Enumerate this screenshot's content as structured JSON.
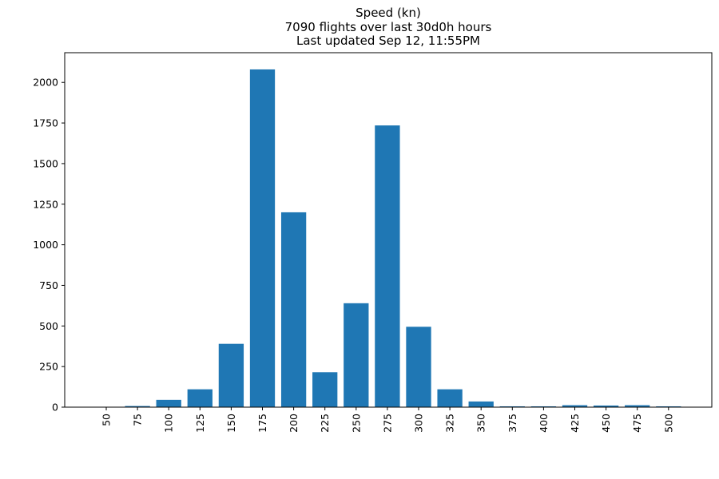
{
  "chart_data": {
    "type": "bar",
    "title": "Speed (kn)",
    "subtitle_lines": [
      "7090 flights over last 30d0h hours",
      "Last updated Sep 12, 11:55PM"
    ],
    "xlabel": "",
    "ylabel": "",
    "categories": [
      "50",
      "75",
      "100",
      "125",
      "150",
      "175",
      "200",
      "225",
      "250",
      "275",
      "300",
      "325",
      "350",
      "375",
      "400",
      "425",
      "450",
      "475",
      "500"
    ],
    "values": [
      2,
      7,
      45,
      110,
      390,
      2080,
      1200,
      215,
      640,
      1735,
      495,
      110,
      35,
      5,
      5,
      12,
      10,
      12,
      5
    ],
    "yticks": [
      0,
      250,
      500,
      750,
      1000,
      1250,
      1500,
      1750,
      2000
    ],
    "ylim": [
      0,
      2183
    ],
    "grid": false,
    "legend": "none",
    "bar_color": "#1f77b4"
  }
}
